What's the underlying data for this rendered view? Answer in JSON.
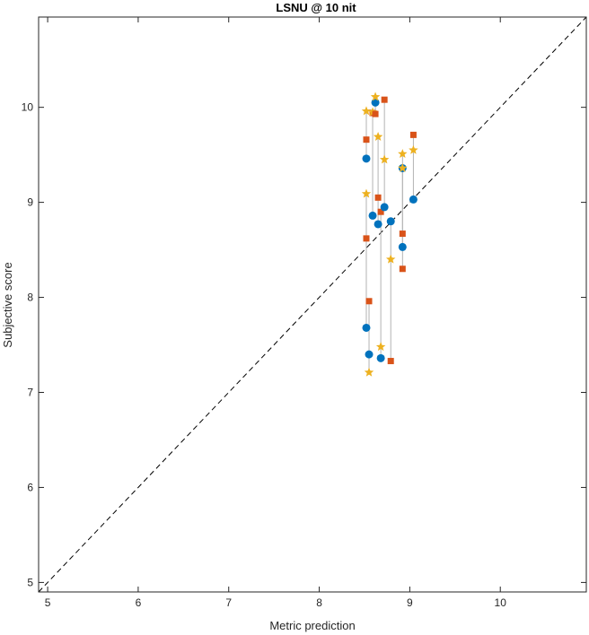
{
  "chart_data": {
    "type": "scatter",
    "title": "LSNU @ 10 nit",
    "xlabel": "Metric prediction",
    "ylabel": "Subjective score",
    "xlim": [
      4.9,
      10.95
    ],
    "ylim": [
      4.9,
      10.95
    ],
    "xticks": [
      5,
      6,
      7,
      8,
      9,
      10
    ],
    "yticks": [
      5,
      6,
      7,
      8,
      9,
      10
    ],
    "grid": false,
    "reference_line": "y = x (dashed)",
    "colors": {
      "circle": "#0072BD",
      "square": "#D95319",
      "star": "#EDB120",
      "connector": "#b3b3b3",
      "reference": "#000000"
    },
    "groups": [
      {
        "x": 8.52,
        "y": [
          9.46,
          9.66,
          9.96
        ]
      },
      {
        "x": 8.52,
        "y": [
          7.68,
          8.62,
          9.09
        ]
      },
      {
        "x": 8.55,
        "y": [
          7.4,
          7.96,
          7.21
        ]
      },
      {
        "x": 8.59,
        "y": [
          8.86,
          9.94,
          9.95
        ]
      },
      {
        "x": 8.62,
        "y": [
          10.05,
          9.93,
          10.11
        ]
      },
      {
        "x": 8.65,
        "y": [
          8.77,
          9.05,
          9.69
        ]
      },
      {
        "x": 8.68,
        "y": [
          7.36,
          8.9,
          7.48
        ]
      },
      {
        "x": 8.72,
        "y": [
          8.95,
          10.08,
          9.45
        ]
      },
      {
        "x": 8.79,
        "y": [
          8.8,
          7.33,
          8.4
        ]
      },
      {
        "x": 8.92,
        "y": [
          8.53,
          8.67,
          9.51
        ]
      },
      {
        "x": 8.92,
        "y": [
          9.36,
          8.3,
          9.36
        ]
      },
      {
        "x": 9.04,
        "y": [
          9.03,
          9.71,
          9.55
        ]
      }
    ]
  }
}
